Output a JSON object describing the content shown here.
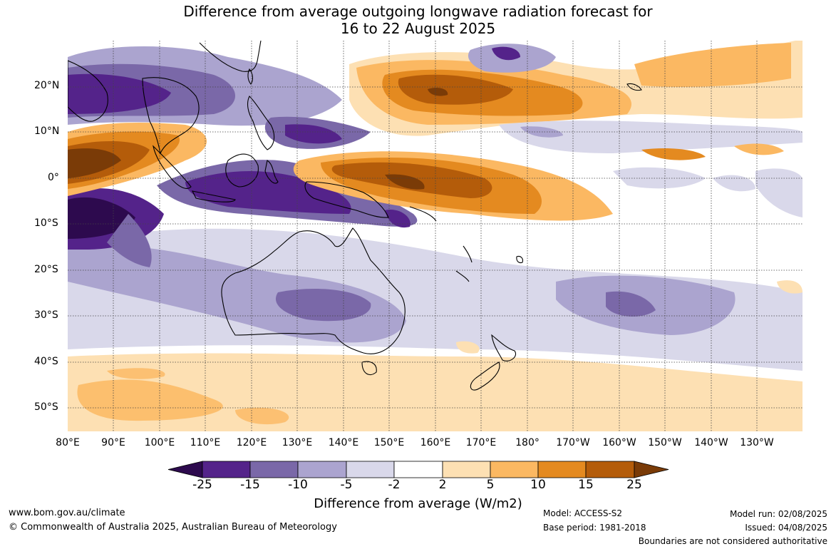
{
  "title_line1": "Difference from average outgoing longwave radiation forecast for",
  "title_line2": "16 to 22 August 2025",
  "lon_labels": [
    "80°E",
    "90°E",
    "100°E",
    "110°E",
    "120°E",
    "130°E",
    "140°E",
    "150°E",
    "160°E",
    "170°E",
    "180°",
    "170°W",
    "160°W",
    "150°W",
    "140°W",
    "130°W"
  ],
  "lat_labels": [
    "20°N",
    "10°N",
    "0°",
    "10°S",
    "20°S",
    "30°S",
    "40°S",
    "50°S"
  ],
  "colorbar": {
    "title": "Difference from average (W/m2)",
    "tick_labels": [
      "-25",
      "-15",
      "-10",
      "-5",
      "-2",
      "2",
      "5",
      "10",
      "15",
      "25"
    ],
    "colors": [
      "#2d0a4e",
      "#54238a",
      "#7a68a8",
      "#aba4cf",
      "#d9d8ea",
      "#ffffff",
      "#fde0b3",
      "#fbb862",
      "#e48a20",
      "#b45c0a",
      "#7a3b07"
    ]
  },
  "footer": {
    "website": "www.bom.gov.au/climate",
    "copyright": "© Commonwealth of Australia 2025, Australian Bureau of Meteorology",
    "model": "Model: ACCESS-S2",
    "base_period": "Base period: 1981-2018",
    "model_run": "Model run: 02/08/2025",
    "issued": "Issued: 04/08/2025",
    "disclaimer": "Boundaries are not considered authoritative"
  }
}
